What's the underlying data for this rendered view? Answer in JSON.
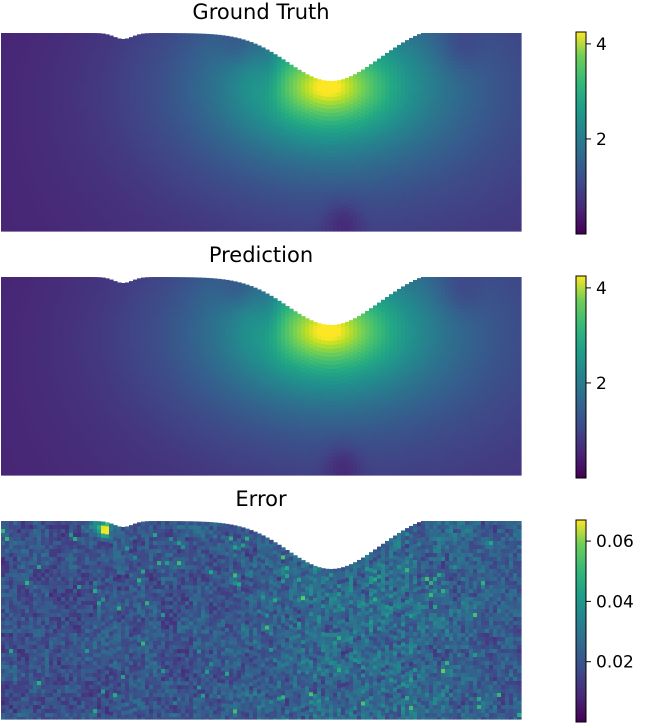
{
  "colormap": "viridis",
  "colors": {
    "viridis_low": "#440154",
    "viridis_mid": "#21918c",
    "viridis_high": "#fde725",
    "background": "#ffffff"
  },
  "chart_data": [
    {
      "type": "heatmap",
      "title": "Ground Truth",
      "field": "smooth",
      "colorbar": {
        "min": 0.0,
        "max": 4.25,
        "ticks": [
          2,
          4
        ],
        "tick_labels": [
          "2",
          "4"
        ]
      }
    },
    {
      "type": "heatmap",
      "title": "Prediction",
      "field": "smooth",
      "colorbar": {
        "min": 0.0,
        "max": 4.25,
        "ticks": [
          2,
          4
        ],
        "tick_labels": [
          "2",
          "4"
        ]
      }
    },
    {
      "type": "heatmap",
      "title": "Error",
      "field": "error",
      "colorbar": {
        "min": 0.0,
        "max": 0.067,
        "ticks": [
          0.02,
          0.04,
          0.06
        ],
        "tick_labels": [
          "0.02",
          "0.04",
          "0.06"
        ]
      }
    }
  ]
}
